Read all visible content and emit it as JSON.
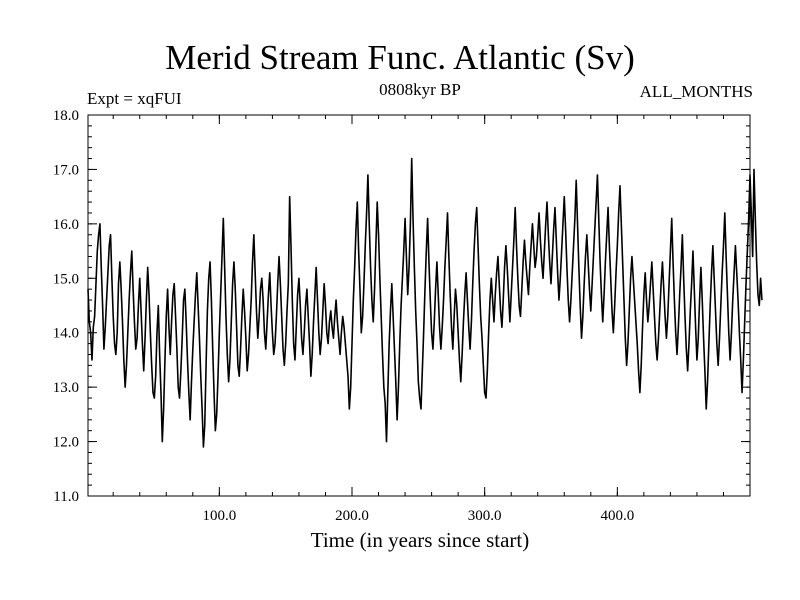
{
  "chart_data": {
    "type": "line",
    "title": "Merid Stream Func. Atlantic (Sv)",
    "subtitle_left": "Expt = xqFUI",
    "subtitle_center": "0808kyr BP",
    "subtitle_right": "ALL_MONTHS",
    "xlabel": "Time (in years since start)",
    "ylabel": "",
    "xlim": [
      1,
      500
    ],
    "ylim": [
      11.0,
      18.0
    ],
    "xticks": [
      100.0,
      200.0,
      300.0,
      400.0
    ],
    "xtick_labels": [
      "100.0",
      "200.0",
      "300.0",
      "400.0"
    ],
    "yticks": [
      11.0,
      12.0,
      13.0,
      14.0,
      15.0,
      16.0,
      17.0,
      18.0
    ],
    "ytick_labels": [
      "11.0",
      "12.0",
      "13.0",
      "14.0",
      "15.0",
      "16.0",
      "17.0",
      "18.0"
    ],
    "grid": false,
    "line_color": "#000000",
    "series": [
      {
        "name": "Merid Stream Func. Atlantic",
        "x_start": 1,
        "x_step": 1,
        "values": [
          14.8,
          14.2,
          14.0,
          13.5,
          14.1,
          14.3,
          14.9,
          15.5,
          15.8,
          16.0,
          15.2,
          14.5,
          13.7,
          14.1,
          14.6,
          15.1,
          15.6,
          15.8,
          15.0,
          14.3,
          13.8,
          13.6,
          14.0,
          14.9,
          15.3,
          14.8,
          14.2,
          13.5,
          13.0,
          13.4,
          14.0,
          14.6,
          15.1,
          15.5,
          14.8,
          14.2,
          13.7,
          13.9,
          14.5,
          15.0,
          14.4,
          13.8,
          13.3,
          13.9,
          14.6,
          15.2,
          14.7,
          14.0,
          13.4,
          12.9,
          12.8,
          13.2,
          14.0,
          14.5,
          13.6,
          12.9,
          12.0,
          12.6,
          13.5,
          14.3,
          14.8,
          14.1,
          13.6,
          14.2,
          14.7,
          14.9,
          14.3,
          13.7,
          13.0,
          12.8,
          13.3,
          13.9,
          14.6,
          14.8,
          14.2,
          13.5,
          12.9,
          12.4,
          13.1,
          13.7,
          14.2,
          14.7,
          15.1,
          14.5,
          13.9,
          13.2,
          12.6,
          11.9,
          12.3,
          13.4,
          14.4,
          15.0,
          15.3,
          14.6,
          13.7,
          12.9,
          12.2,
          12.5,
          13.2,
          14.0,
          14.7,
          15.4,
          16.1,
          15.2,
          14.3,
          13.6,
          13.1,
          13.5,
          14.2,
          14.9,
          15.3,
          14.8,
          14.1,
          13.4,
          13.2,
          13.7,
          14.3,
          14.8,
          14.4,
          13.9,
          13.3,
          13.6,
          14.1,
          14.6,
          15.3,
          15.8,
          15.1,
          14.4,
          13.9,
          14.3,
          14.8,
          15.0,
          14.6,
          14.0,
          13.7,
          14.2,
          14.7,
          15.1,
          14.5,
          14.0,
          13.6,
          13.8,
          14.3,
          14.9,
          15.4,
          14.9,
          14.3,
          13.7,
          13.4,
          13.8,
          14.4,
          14.9,
          16.5,
          15.6,
          14.6,
          13.8,
          13.5,
          14.1,
          14.7,
          15.0,
          14.5,
          13.9,
          13.6,
          14.0,
          14.5,
          14.8,
          14.3,
          13.8,
          13.2,
          13.6,
          14.2,
          14.7,
          15.2,
          14.6,
          14.0,
          13.6,
          13.9,
          14.4,
          14.9,
          14.5,
          14.0,
          13.8,
          14.2,
          14.4,
          14.1,
          13.9,
          14.3,
          14.6,
          14.2,
          13.9,
          13.6,
          14.0,
          14.3,
          14.1,
          13.8,
          13.5,
          13.2,
          12.6,
          13.0,
          13.8,
          14.6,
          15.2,
          15.9,
          16.4,
          15.5,
          14.8,
          14.0,
          14.3,
          14.9,
          15.6,
          16.2,
          16.9,
          16.0,
          15.2,
          14.6,
          14.2,
          14.8,
          15.6,
          16.4,
          15.8,
          15.0,
          14.3,
          13.6,
          13.0,
          12.7,
          12.0,
          12.9,
          13.8,
          14.4,
          14.9,
          14.3,
          13.7,
          13.1,
          12.4,
          13.0,
          13.8,
          14.5,
          15.0,
          15.5,
          16.1,
          15.4,
          14.7,
          15.2,
          16.0,
          17.2,
          16.1,
          15.2,
          14.4,
          13.8,
          13.1,
          12.8,
          12.6,
          13.3,
          14.0,
          14.8,
          15.5,
          16.1,
          15.3,
          14.6,
          14.0,
          13.7,
          14.2,
          14.8,
          15.3,
          14.7,
          14.1,
          13.7,
          14.1,
          14.6,
          15.2,
          15.7,
          16.2,
          15.4,
          14.7,
          14.1,
          13.7,
          14.3,
          14.8,
          14.5,
          14.0,
          13.5,
          13.1,
          13.6,
          14.2,
          14.7,
          15.1,
          14.6,
          14.1,
          13.7,
          14.2,
          14.9,
          15.5,
          16.0,
          16.3,
          15.6,
          14.9,
          14.3,
          13.9,
          13.4,
          12.9,
          12.8,
          13.3,
          14.0,
          14.6,
          15.0,
          14.6,
          14.2,
          14.7,
          15.1,
          15.4,
          14.9,
          14.4,
          14.1,
          14.6,
          15.2,
          15.6,
          15.2,
          14.7,
          14.2,
          14.7,
          15.2,
          15.7,
          16.3,
          15.6,
          15.0,
          14.5,
          14.3,
          14.8,
          15.3,
          15.7,
          15.3,
          15.0,
          14.7,
          15.2,
          15.6,
          16.0,
          15.6,
          15.2,
          15.4,
          15.8,
          16.2,
          15.7,
          15.3,
          15.0,
          15.5,
          16.0,
          16.4,
          15.8,
          15.3,
          14.9,
          15.4,
          15.9,
          16.3,
          15.7,
          15.1,
          14.6,
          15.0,
          15.5,
          16.0,
          16.5,
          15.9,
          15.2,
          14.6,
          14.2,
          14.6,
          15.1,
          15.6,
          16.1,
          16.8,
          16.0,
          15.2,
          14.5,
          13.9,
          14.3,
          14.9,
          15.4,
          15.8,
          15.3,
          14.8,
          14.4,
          14.9,
          15.4,
          15.9,
          16.4,
          16.9,
          16.1,
          15.3,
          14.7,
          14.2,
          14.7,
          15.3,
          15.8,
          16.3,
          15.6,
          15.0,
          14.4,
          14.0,
          14.5,
          15.1,
          15.6,
          16.2,
          16.7,
          16.0,
          15.3,
          14.6,
          13.9,
          13.4,
          13.8,
          14.4,
          15.0,
          15.4,
          15.0,
          14.6,
          14.2,
          13.8,
          13.3,
          12.9,
          13.4,
          14.1,
          14.7,
          15.1,
          14.6,
          14.2,
          14.5,
          14.9,
          15.3,
          14.8,
          14.3,
          13.8,
          13.5,
          13.9,
          14.4,
          14.9,
          15.3,
          14.8,
          14.3,
          13.9,
          14.3,
          14.9,
          15.5,
          16.1,
          15.3,
          14.6,
          14.0,
          13.6,
          14.1,
          14.7,
          15.2,
          15.8,
          15.0,
          14.3,
          13.7,
          13.3,
          13.8,
          14.4,
          14.9,
          15.5,
          14.8,
          14.1,
          13.5,
          13.9,
          14.6,
          15.2,
          14.6,
          13.9,
          13.3,
          12.6,
          13.1,
          13.8,
          14.5,
          15.1,
          15.6,
          15.0,
          14.4,
          13.8,
          13.4,
          13.9,
          14.5,
          15.1,
          15.6,
          16.2,
          15.4,
          14.7,
          14.0,
          13.5,
          14.0,
          14.6,
          15.1,
          15.6,
          15.1,
          14.6,
          14.0,
          13.5,
          12.9,
          13.5,
          14.2,
          14.9,
          15.5,
          16.1,
          16.9,
          16.2,
          15.4,
          17.0,
          16.1,
          15.3,
          14.7,
          14.5,
          15.0,
          14.6
        ]
      }
    ]
  }
}
